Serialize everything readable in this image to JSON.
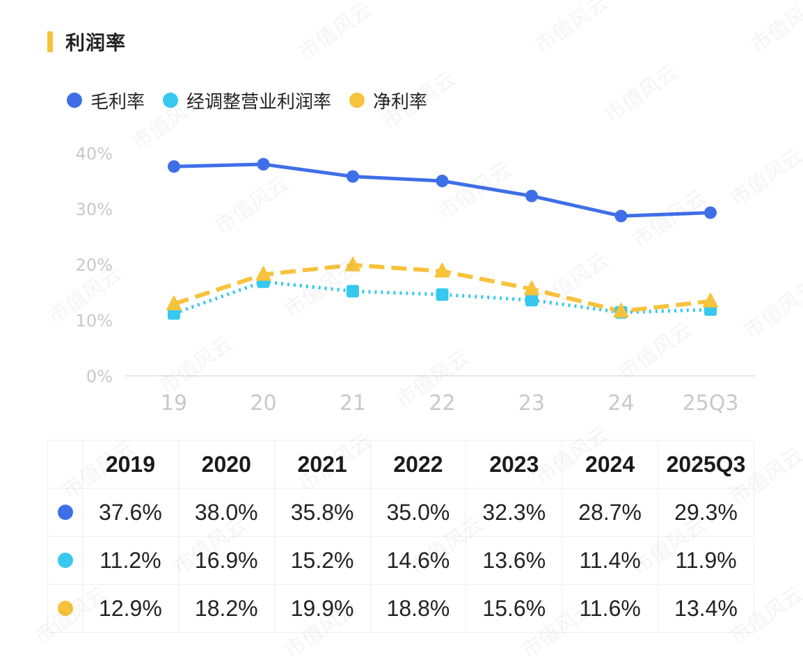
{
  "header": {
    "title": "利润率"
  },
  "watermark_text": "市值风云",
  "colors": {
    "accent": "#f7c23c",
    "gross": "#3f6fe8",
    "adjusted": "#37c8ef",
    "net": "#f7c23c",
    "grid": "#e6e6e6",
    "tick": "#c8c8c8"
  },
  "chart_data": {
    "type": "line",
    "categories": [
      "19",
      "20",
      "21",
      "22",
      "23",
      "24",
      "25Q3"
    ],
    "ylim": [
      0,
      40
    ],
    "yticks": [
      "0%",
      "10%",
      "20%",
      "30%",
      "40%"
    ],
    "legend_position": "top-left",
    "series": [
      {
        "name": "毛利率",
        "values": [
          37.6,
          38.0,
          35.8,
          35.0,
          32.3,
          28.7,
          29.3
        ],
        "color": "#3f6fe8",
        "marker": "circle",
        "style": "solid"
      },
      {
        "name": "经调整营业利润率",
        "values": [
          11.2,
          16.9,
          15.2,
          14.6,
          13.6,
          11.4,
          11.9
        ],
        "color": "#37c8ef",
        "marker": "square",
        "style": "dotted"
      },
      {
        "name": "净利率",
        "values": [
          12.9,
          18.2,
          19.9,
          18.8,
          15.6,
          11.6,
          13.4
        ],
        "color": "#f7c23c",
        "marker": "triangle",
        "style": "dashed"
      }
    ]
  },
  "table": {
    "headers": [
      "2019",
      "2020",
      "2021",
      "2022",
      "2023",
      "2024",
      "2025Q3"
    ],
    "rows": [
      {
        "color": "#3f6fe8",
        "cells": [
          "37.6%",
          "38.0%",
          "35.8%",
          "35.0%",
          "32.3%",
          "28.7%",
          "29.3%"
        ]
      },
      {
        "color": "#37c8ef",
        "cells": [
          "11.2%",
          "16.9%",
          "15.2%",
          "14.6%",
          "13.6%",
          "11.4%",
          "11.9%"
        ]
      },
      {
        "color": "#f7c23c",
        "cells": [
          "12.9%",
          "18.2%",
          "19.9%",
          "18.8%",
          "15.6%",
          "11.6%",
          "13.4%"
        ]
      }
    ]
  }
}
